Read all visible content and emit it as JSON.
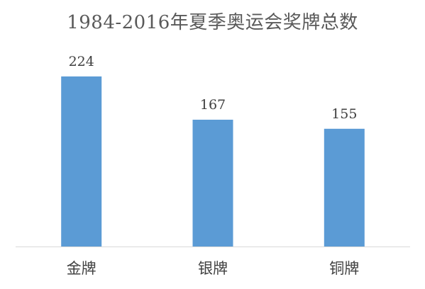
{
  "chart_data": {
    "type": "bar",
    "title": "1984-2016年夏季奥运会奖牌总数",
    "categories": [
      "金牌",
      "银牌",
      "铜牌"
    ],
    "values": [
      224,
      167,
      155
    ],
    "xlabel": "",
    "ylabel": "",
    "ylim": [
      0,
      250
    ],
    "grid": false,
    "legend": "none",
    "bar_color": "#5b9bd5",
    "axis_color": "#d9d9d9"
  }
}
